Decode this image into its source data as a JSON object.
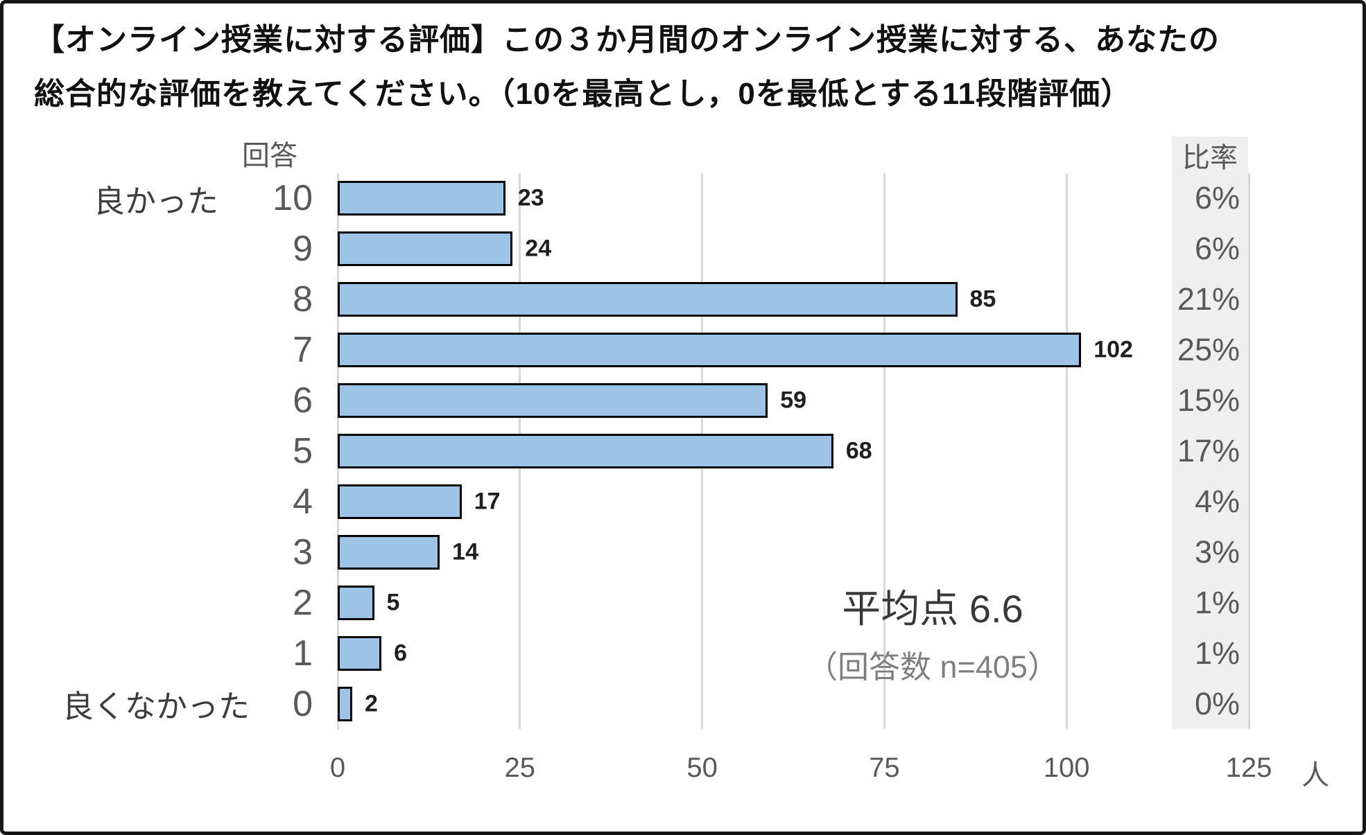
{
  "title": {
    "line1": "【オンライン授業に対する評価】この３か月間のオンライン授業に対する、あなたの",
    "line2": "総合的な評価を教えてください。（10を最高とし，0を最低とする11段階評価）"
  },
  "chart_data": {
    "type": "bar",
    "orientation": "horizontal",
    "title": "【オンライン授業に対する評価】この３か月間のオンライン授業に対する、あなたの総合的な評価を教えてください。（10を最高とし，0を最低とする11段階評価）",
    "axis_header_left": "回答",
    "axis_header_right": "比率",
    "category_top_label": "良かった",
    "category_bottom_label": "良くなかった",
    "categories": [
      "10",
      "9",
      "8",
      "7",
      "6",
      "5",
      "4",
      "3",
      "2",
      "1",
      "0"
    ],
    "values": [
      23,
      24,
      85,
      102,
      59,
      68,
      17,
      14,
      5,
      6,
      2
    ],
    "percent_labels": [
      "6%",
      "6%",
      "21%",
      "25%",
      "15%",
      "17%",
      "4%",
      "3%",
      "1%",
      "1%",
      "0%"
    ],
    "x_ticks": [
      0,
      25,
      50,
      75,
      100,
      125
    ],
    "xlim": [
      0,
      125
    ],
    "x_unit": "人",
    "grid": true,
    "legend": false,
    "annotations": {
      "mean_label": "平均点 6.6",
      "n_label": "（回答数 n=405）"
    },
    "colors": {
      "bar_fill": "#9DC3E6",
      "bar_border": "#000000",
      "gridline": "#D8D8D8",
      "ratio_panel_background": "#EFEFEF",
      "axis_text": "#595959",
      "value_text": "#1F1F1F",
      "title_text": "#111111"
    }
  }
}
